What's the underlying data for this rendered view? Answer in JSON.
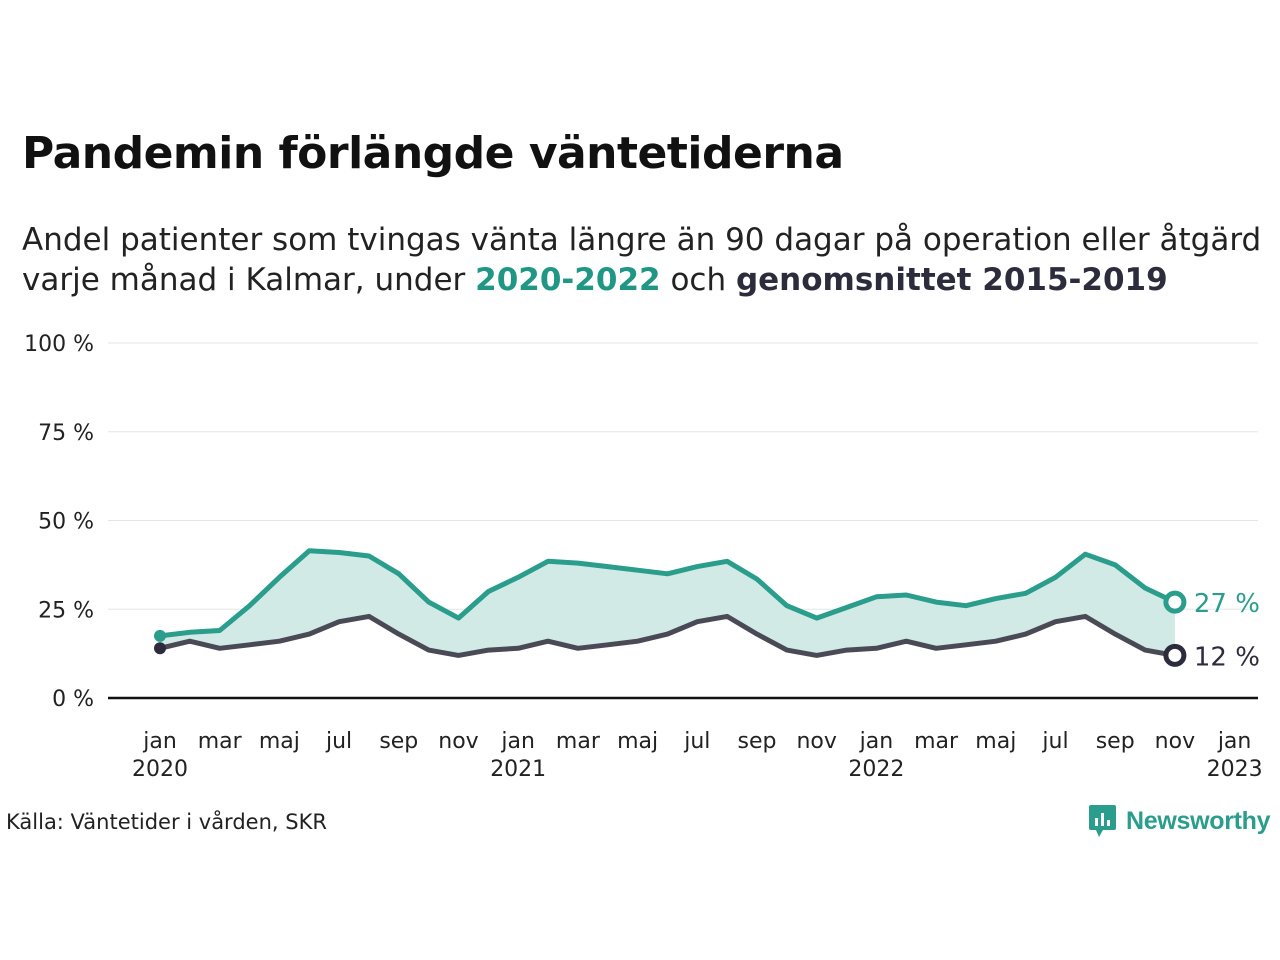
{
  "title": "Pandemin förlängde väntetiderna",
  "subtitle": {
    "line1": "Andel patienter som tvingas vänta längre än 90 dagar på operation eller åtgärd",
    "line2_prefix": "varje månad i Kalmar, under ",
    "highlight_current": "2020-2022",
    "middle": " och ",
    "highlight_average": "genomsnittet 2015-2019"
  },
  "source": "Källa: Väntetider i vården, SKR",
  "logo": {
    "text": "Newsworthy",
    "icon": "newsworthy-logo-icon"
  },
  "colors": {
    "current": "#2a9d8c",
    "average": "#4a4a56",
    "fill": "#cfe9e4",
    "axis": "#111111",
    "grid": "#e6e6e6"
  },
  "chart_data": {
    "type": "area",
    "x_start": "2020-01",
    "ylim": [
      0,
      100
    ],
    "y_ticks": [
      "0 %",
      "25 %",
      "50 %",
      "75 %",
      "100 %"
    ],
    "y_tick_values": [
      0,
      25,
      50,
      75,
      100
    ],
    "x_tick_labels": [
      {
        "month": "jan",
        "year": "2020"
      },
      {
        "month": "mar",
        "year": ""
      },
      {
        "month": "maj",
        "year": ""
      },
      {
        "month": "jul",
        "year": ""
      },
      {
        "month": "sep",
        "year": ""
      },
      {
        "month": "nov",
        "year": ""
      },
      {
        "month": "jan",
        "year": "2021"
      },
      {
        "month": "mar",
        "year": ""
      },
      {
        "month": "maj",
        "year": ""
      },
      {
        "month": "jul",
        "year": ""
      },
      {
        "month": "sep",
        "year": ""
      },
      {
        "month": "nov",
        "year": ""
      },
      {
        "month": "jan",
        "year": "2022"
      },
      {
        "month": "mar",
        "year": ""
      },
      {
        "month": "maj",
        "year": ""
      },
      {
        "month": "jul",
        "year": ""
      },
      {
        "month": "sep",
        "year": ""
      },
      {
        "month": "nov",
        "year": ""
      },
      {
        "month": "jan",
        "year": "2023"
      }
    ],
    "series": [
      {
        "name": "2020-2022",
        "end_label": "27 %",
        "values": [
          17.5,
          18.5,
          19,
          26,
          34,
          41.5,
          41,
          40,
          35,
          27,
          22.5,
          30,
          34,
          38.5,
          38,
          37,
          36,
          35,
          37,
          38.5,
          33.5,
          26,
          22.5,
          25.5,
          28.5,
          29,
          27,
          26,
          28,
          29.5,
          34,
          40.5,
          37.5,
          31,
          27
        ]
      },
      {
        "name": "genomsnittet 2015-2019",
        "end_label": "12 %",
        "values": [
          14,
          16,
          14,
          15,
          16,
          18,
          21.5,
          23,
          18,
          13.5,
          12,
          13.5,
          14,
          16,
          14,
          15,
          16,
          18,
          21.5,
          23,
          18,
          13.5,
          12,
          13.5,
          14,
          16,
          14,
          15,
          16,
          18,
          21.5,
          23,
          18,
          13.5,
          12
        ]
      }
    ]
  }
}
